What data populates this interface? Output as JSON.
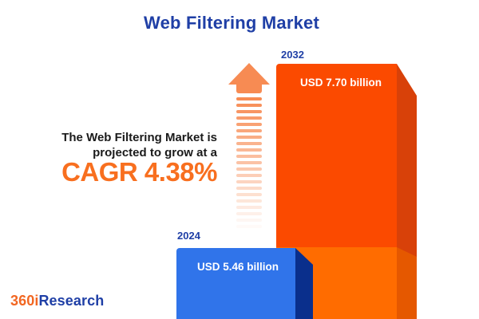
{
  "header": {
    "title": "Web Filtering Market"
  },
  "note": {
    "line1": "The Web Filtering Market is",
    "line2": "projected to grow at a",
    "cagr": "CAGR 4.38%"
  },
  "chart_data": {
    "type": "bar",
    "title": "Web Filtering Market",
    "categories": [
      "2024",
      "2032"
    ],
    "values": [
      5.46,
      7.7
    ],
    "unit": "USD billion",
    "bar_labels": [
      "USD 5.46 billion",
      "USD 7.70 billion"
    ],
    "cagr_percent": 4.38,
    "bar_colors": [
      "#3074ea",
      "#fb4a00"
    ],
    "legend": "none",
    "grid": false,
    "style": "3d-infographic, bars anchored to bottom edge, year labels above bars, value labels inside bars"
  },
  "arrow": {
    "stripe_count": 21,
    "color": "#f78b53",
    "direction": "up",
    "meaning": "market growth"
  },
  "logo": {
    "part1": "360i",
    "part2": "Research"
  },
  "colors": {
    "background": "#ffffff",
    "title_blue": "#1f3fa6",
    "text_dark": "#1a1a1a",
    "cagr_orange": "#f86f1f",
    "logo_orange": "#f26722",
    "bar2032_front": "#fb4a00",
    "bar2032_side": "#d84109",
    "bar2032_lower_front": "#ff6c00",
    "bar2032_lower_side": "#e55800",
    "bar2024_front": "#3074ea",
    "bar2024_side": "#0a2f8c",
    "arrow_orange": "#f78b53"
  }
}
